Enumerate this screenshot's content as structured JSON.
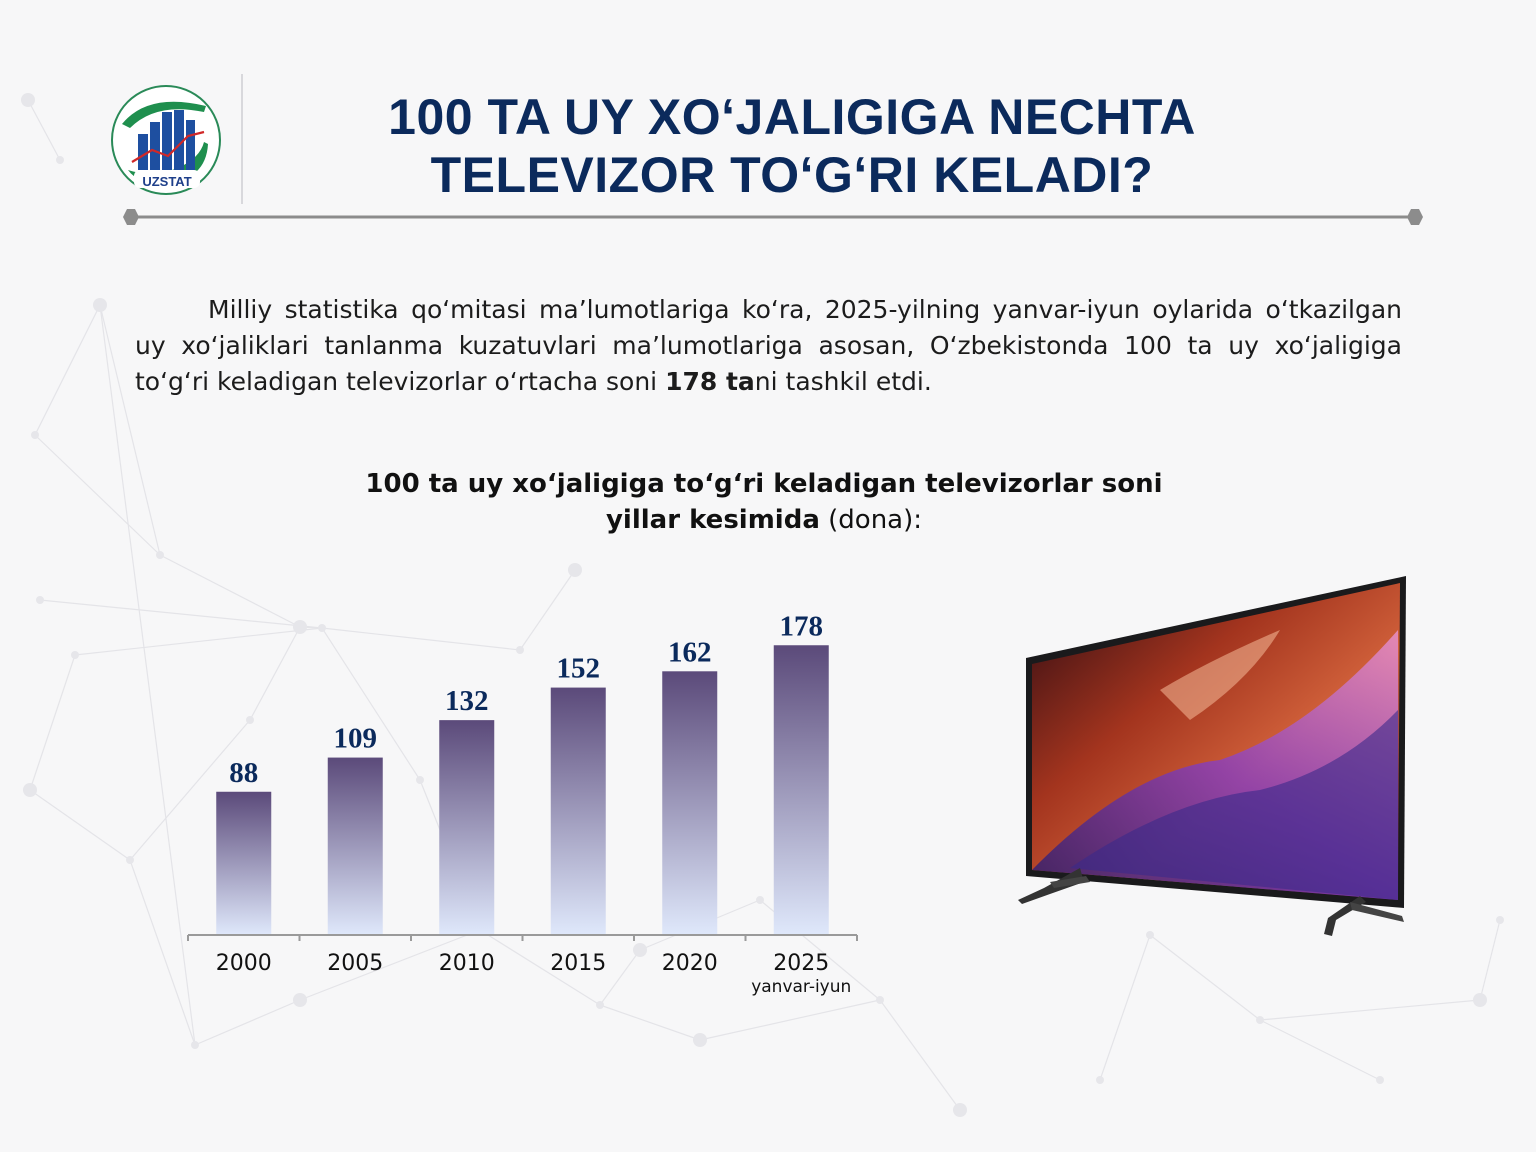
{
  "header": {
    "logo_text": "UZSTAT",
    "title_line1": "100 TA UY XO‘JALIGIGA NECHTA",
    "title_line2": "TELEVIZOR TO‘G‘RI KELADI?"
  },
  "intro": {
    "text_before": "Milliy statistika qo‘mitasi ma’lumotlariga ko‘ra, 2025-yilning yanvar-iyun oylarida o‘tkazilgan uy xo‘jaliklari tanlanma kuzatuvlari ma’lumotlariga asosan, O‘zbekistonda 100 ta uy xo‘jaligiga to‘g‘ri keladigan televizorlar o‘rtacha soni ",
    "highlight": "178 ta",
    "text_after": "ni tashkil etdi."
  },
  "colors": {
    "title": "#0b2a5c",
    "bar_top": "#5b4a7a",
    "bar_bottom": "#dfe8fb",
    "value_label": "#0b2a5c",
    "rule": "#8c8c8c"
  },
  "chart_data": {
    "type": "bar",
    "title_bold": "100 ta uy xo‘jaligiga to‘g‘ri keladigan televizorlar soni yillar kesimida",
    "title_unit": " (dona):",
    "categories": [
      "2000",
      "2005",
      "2010",
      "2015",
      "2020",
      "2025"
    ],
    "category_sublabels": [
      "",
      "",
      "",
      "",
      "",
      "yanvar-iyun"
    ],
    "values": [
      88,
      109,
      132,
      152,
      162,
      178
    ],
    "ylim": [
      0,
      190
    ],
    "grid": false,
    "legend": "none",
    "data_labels": true
  },
  "icons": {
    "logo": "uzstat-logo-icon",
    "tv": "television-image"
  }
}
